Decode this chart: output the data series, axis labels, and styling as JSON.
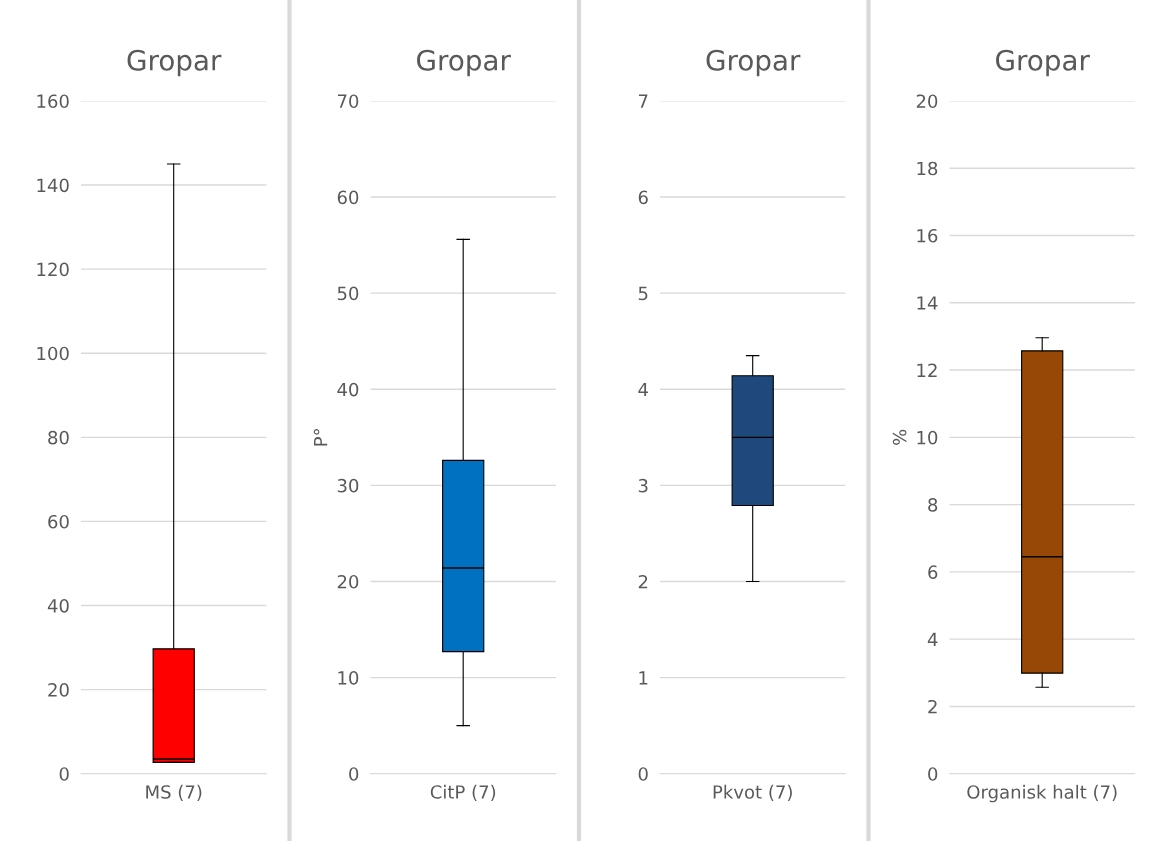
{
  "chart_data": [
    {
      "type": "box",
      "title": "Gropar",
      "categories": [
        "MS (7)"
      ],
      "color": "#ff0000",
      "boxes": [
        {
          "low": 2.7,
          "q1": 2.7,
          "median": 3.5,
          "q3": 29.7,
          "high": 145
        }
      ],
      "ylim": [
        0,
        160
      ],
      "yticks": [
        0,
        20,
        40,
        60,
        80,
        100,
        120,
        140,
        160
      ],
      "grid": "y"
    },
    {
      "type": "box",
      "title": "Gropar",
      "ylabel": "P°",
      "categories": [
        "CitP (7)"
      ],
      "color": "#0070c0",
      "boxes": [
        {
          "low": 5.0,
          "q1": 12.7,
          "median": 21.4,
          "q3": 32.6,
          "high": 55.6
        }
      ],
      "ylim": [
        0,
        70
      ],
      "yticks": [
        0,
        10,
        20,
        30,
        40,
        50,
        60,
        70
      ],
      "grid": "y"
    },
    {
      "type": "box",
      "title": "Gropar",
      "categories": [
        "Pkvot (7)"
      ],
      "color": "#1f497d",
      "boxes": [
        {
          "low": 2.0,
          "q1": 2.79,
          "median": 3.5,
          "q3": 4.14,
          "high": 4.35
        }
      ],
      "ylim": [
        0,
        7
      ],
      "yticks": [
        0,
        1,
        2,
        3,
        4,
        5,
        6,
        7
      ],
      "grid": "y"
    },
    {
      "type": "box",
      "title": "Gropar",
      "ylabel": "%",
      "categories": [
        "Organisk halt (7)"
      ],
      "color": "#974706",
      "boxes": [
        {
          "low": 2.57,
          "q1": 2.99,
          "median": 6.45,
          "q3": 12.57,
          "high": 12.96
        }
      ],
      "ylim": [
        0,
        20
      ],
      "yticks": [
        0,
        2,
        4,
        6,
        8,
        10,
        12,
        14,
        16,
        18,
        20
      ],
      "grid": "y"
    }
  ]
}
